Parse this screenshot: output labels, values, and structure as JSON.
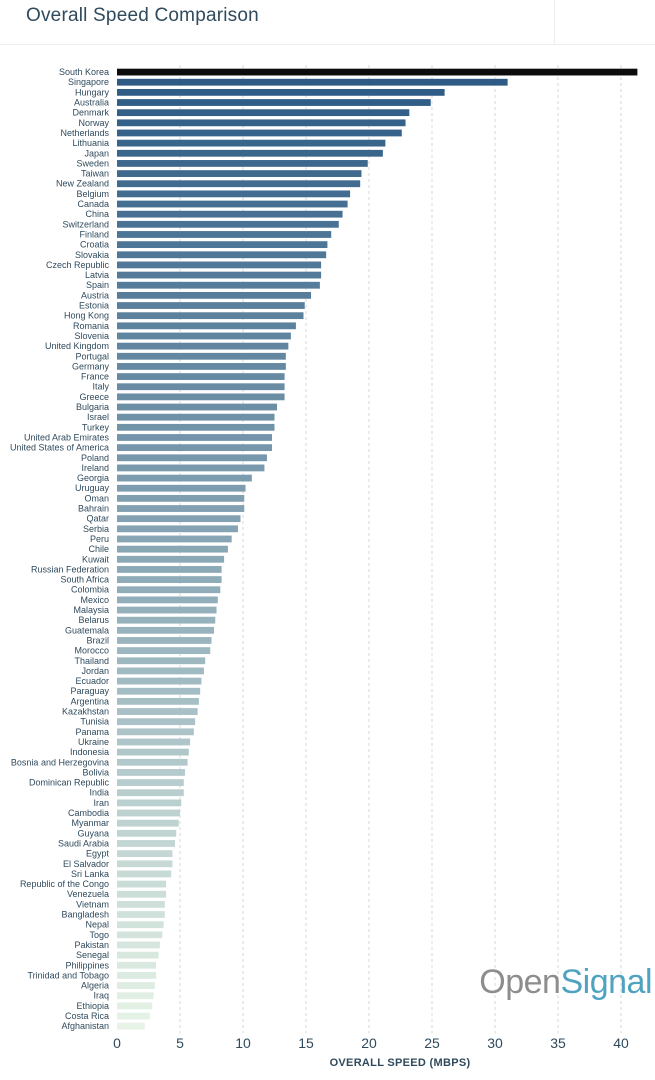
{
  "header": {
    "title": "Overall Speed Comparison"
  },
  "logo": {
    "open": "Open",
    "signal": "Signal"
  },
  "chart_data": {
    "type": "bar",
    "orientation": "horizontal",
    "title": "Overall Speed Comparison",
    "xlabel": "OVERALL SPEED (MBPS)",
    "ylabel": "",
    "xlim": [
      0,
      41.5
    ],
    "xticks": [
      0,
      5,
      10,
      15,
      20,
      25,
      30,
      35,
      40
    ],
    "grid": "vertical-dashed",
    "categories": [
      "South Korea",
      "Singapore",
      "Hungary",
      "Australia",
      "Denmark",
      "Norway",
      "Netherlands",
      "Lithuania",
      "Japan",
      "Sweden",
      "Taiwan",
      "New Zealand",
      "Belgium",
      "Canada",
      "China",
      "Switzerland",
      "Finland",
      "Croatia",
      "Slovakia",
      "Czech Republic",
      "Latvia",
      "Spain",
      "Austria",
      "Estonia",
      "Hong Kong",
      "Romania",
      "Slovenia",
      "United Kingdom",
      "Portugal",
      "Germany",
      "France",
      "Italy",
      "Greece",
      "Bulgaria",
      "Israel",
      "Turkey",
      "United Arab Emirates",
      "United States of America",
      "Poland",
      "Ireland",
      "Georgia",
      "Uruguay",
      "Oman",
      "Bahrain",
      "Qatar",
      "Serbia",
      "Peru",
      "Chile",
      "Kuwait",
      "Russian Federation",
      "South Africa",
      "Colombia",
      "Mexico",
      "Malaysia",
      "Belarus",
      "Guatemala",
      "Brazil",
      "Morocco",
      "Thailand",
      "Jordan",
      "Ecuador",
      "Paraguay",
      "Argentina",
      "Kazakhstan",
      "Tunisia",
      "Panama",
      "Ukraine",
      "Indonesia",
      "Bosnia and Herzegovina",
      "Bolivia",
      "Dominican Republic",
      "India",
      "Iran",
      "Cambodia",
      "Myanmar",
      "Guyana",
      "Saudi Arabia",
      "Egypt",
      "El Salvador",
      "Sri Lanka",
      "Republic of the Congo",
      "Venezuela",
      "Vietnam",
      "Bangladesh",
      "Nepal",
      "Togo",
      "Pakistan",
      "Senegal",
      "Philippines",
      "Trinidad and Tobago",
      "Algeria",
      "Iraq",
      "Ethiopia",
      "Costa Rica",
      "Afghanistan"
    ],
    "values": [
      41.3,
      31.0,
      26.0,
      24.9,
      23.2,
      22.9,
      22.6,
      21.3,
      21.1,
      19.9,
      19.4,
      19.3,
      18.5,
      18.3,
      17.9,
      17.6,
      17.0,
      16.7,
      16.6,
      16.2,
      16.2,
      16.1,
      15.4,
      14.9,
      14.8,
      14.2,
      13.8,
      13.6,
      13.4,
      13.4,
      13.3,
      13.3,
      13.3,
      12.7,
      12.5,
      12.5,
      12.3,
      12.3,
      11.9,
      11.7,
      10.7,
      10.2,
      10.1,
      10.1,
      9.8,
      9.6,
      9.1,
      8.8,
      8.5,
      8.3,
      8.3,
      8.2,
      8.0,
      7.9,
      7.8,
      7.7,
      7.5,
      7.4,
      7.0,
      6.9,
      6.7,
      6.6,
      6.5,
      6.4,
      6.2,
      6.1,
      5.8,
      5.7,
      5.6,
      5.4,
      5.3,
      5.3,
      5.1,
      5.0,
      4.9,
      4.7,
      4.6,
      4.4,
      4.4,
      4.3,
      3.9,
      3.9,
      3.8,
      3.8,
      3.7,
      3.6,
      3.4,
      3.3,
      3.1,
      3.1,
      3.0,
      2.9,
      2.8,
      2.6,
      2.2
    ],
    "colors": {
      "first": "#0c0c0c",
      "top": "#2d5b85",
      "bottom": "#e6f3e6"
    }
  }
}
